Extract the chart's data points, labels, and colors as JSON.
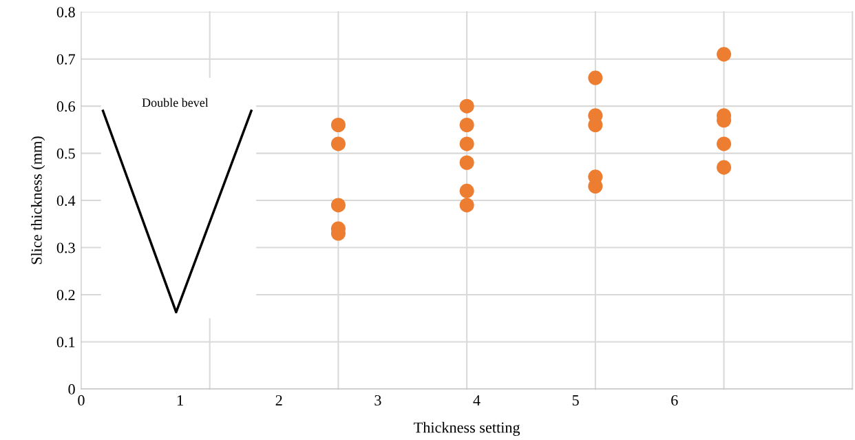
{
  "chart_data": {
    "type": "scatter",
    "xlabel": "Thickness setting",
    "ylabel": "Slice thickness (mm)",
    "series": [
      {
        "color": "#ed7d31",
        "x": [
          2.6,
          2.6,
          2.6,
          2.6,
          2.6
        ],
        "values": [
          0.56,
          0.52,
          0.39,
          0.34,
          0.33
        ]
      },
      {
        "color": "#ed7d31",
        "x": [
          3.9,
          3.9,
          3.9,
          3.9,
          3.9,
          3.9
        ],
        "values": [
          0.6,
          0.56,
          0.52,
          0.48,
          0.42,
          0.39
        ]
      },
      {
        "color": "#ed7d31",
        "x": [
          5.2,
          5.2,
          5.2,
          5.2,
          5.2
        ],
        "values": [
          0.66,
          0.58,
          0.56,
          0.45,
          0.43
        ]
      },
      {
        "color": "#ed7d31",
        "x": [
          6.5,
          6.5,
          6.5,
          6.5,
          6.5
        ],
        "values": [
          0.71,
          0.58,
          0.57,
          0.52,
          0.47
        ]
      }
    ],
    "xlim": [
      0,
      7.8
    ],
    "xticks": [
      0,
      1,
      2,
      3,
      4,
      5,
      6
    ],
    "ylim": [
      0,
      0.8
    ],
    "yticks": [
      0,
      0.1,
      0.2,
      0.3,
      0.4,
      0.5,
      0.6,
      0.7,
      0.8
    ],
    "grid": "y",
    "marker": "circle",
    "ref_lines": [
      {
        "axis": "x",
        "value": 1.3,
        "color": "#d9d9d9"
      },
      {
        "axis": "x",
        "value": 2.6,
        "color": "#d9d9d9"
      },
      {
        "axis": "x",
        "value": 3.9,
        "color": "#d9d9d9"
      },
      {
        "axis": "x",
        "value": 5.2,
        "color": "#d9d9d9"
      },
      {
        "axis": "x",
        "value": 6.5,
        "color": "#d9d9d9"
      }
    ],
    "annotations": [
      "Double bevel"
    ]
  }
}
